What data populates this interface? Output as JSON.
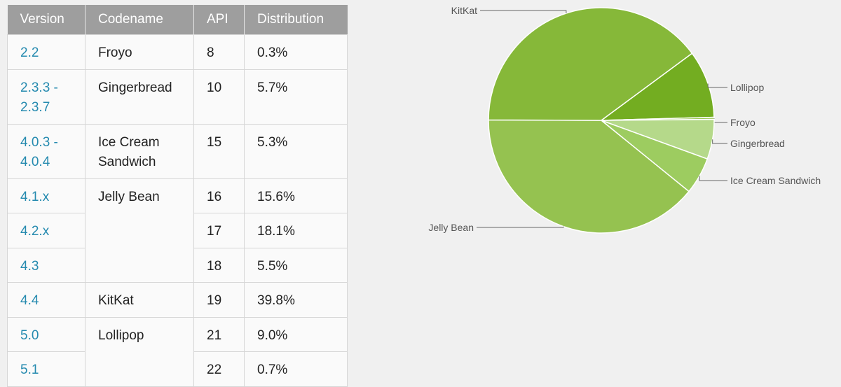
{
  "table": {
    "headers": [
      "Version",
      "Codename",
      "API",
      "Distribution"
    ],
    "rows": [
      {
        "version": "2.2",
        "codename": "Froyo",
        "api": "8",
        "distribution": "0.3%"
      },
      {
        "version": "2.3.3 -\n2.3.7",
        "codename": "Gingerbread",
        "api": "10",
        "distribution": "5.7%"
      },
      {
        "version": "4.0.3 -\n4.0.4",
        "codename": "Ice Cream\nSandwich",
        "api": "15",
        "distribution": "5.3%"
      },
      {
        "version": "4.1.x",
        "codename": "Jelly Bean",
        "api": "16",
        "distribution": "15.6%"
      },
      {
        "version": "4.2.x",
        "codename": "",
        "api": "17",
        "distribution": "18.1%"
      },
      {
        "version": "4.3",
        "codename": "",
        "api": "18",
        "distribution": "5.5%"
      },
      {
        "version": "4.4",
        "codename": "KitKat",
        "api": "19",
        "distribution": "39.8%"
      },
      {
        "version": "5.0",
        "codename": "Lollipop",
        "api": "21",
        "distribution": "9.0%"
      },
      {
        "version": "5.1",
        "codename": "",
        "api": "22",
        "distribution": "0.7%"
      }
    ]
  },
  "colors": {
    "header_bg": "#9e9e9e",
    "version_link": "#258aaf"
  },
  "chart_data": {
    "type": "pie",
    "slices": [
      {
        "label": "Lollipop",
        "value": 9.7,
        "color": "#73ad21"
      },
      {
        "label": "Froyo",
        "value": 0.3,
        "color": "#97c74e"
      },
      {
        "label": "Gingerbread",
        "value": 5.7,
        "color": "#b5d98a"
      },
      {
        "label": "Ice Cream Sandwich",
        "value": 5.3,
        "color": "#9dcc60"
      },
      {
        "label": "Jelly Bean",
        "value": 39.2,
        "color": "#95c250"
      },
      {
        "label": "KitKat",
        "value": 39.8,
        "color": "#86b839"
      }
    ]
  }
}
